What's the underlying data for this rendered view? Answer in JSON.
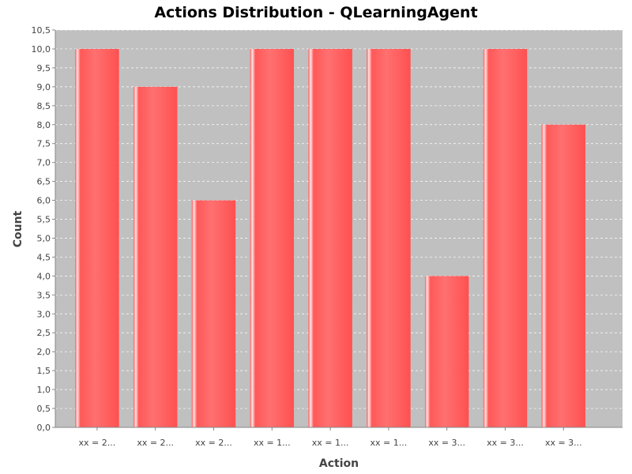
{
  "chart_data": {
    "type": "bar",
    "title": "Actions Distribution - QLearningAgent",
    "xlabel": "Action",
    "ylabel": "Count",
    "categories": [
      "xx = 2...",
      "xx = 2...",
      "xx = 2...",
      "xx = 1...",
      "xx = 1...",
      "xx = 1...",
      "xx = 3...",
      "xx = 3...",
      "xx = 3..."
    ],
    "values": [
      10,
      9,
      6,
      10,
      10,
      10,
      4,
      10,
      8
    ],
    "ylim": [
      0,
      10.5
    ],
    "yticks": [
      "0,0",
      "0,5",
      "1,0",
      "1,5",
      "2,0",
      "2,5",
      "3,0",
      "3,5",
      "4,0",
      "4,5",
      "5,0",
      "5,5",
      "6,0",
      "6,5",
      "7,0",
      "7,5",
      "8,0",
      "8,5",
      "9,0",
      "9,5",
      "10,0",
      "10,5"
    ],
    "grid": true,
    "colors": {
      "plot_background": "#c0c0c0",
      "bar": "#ff5555",
      "bar_highlight": "#ffd6d6",
      "gridline": "#ffffff"
    }
  }
}
